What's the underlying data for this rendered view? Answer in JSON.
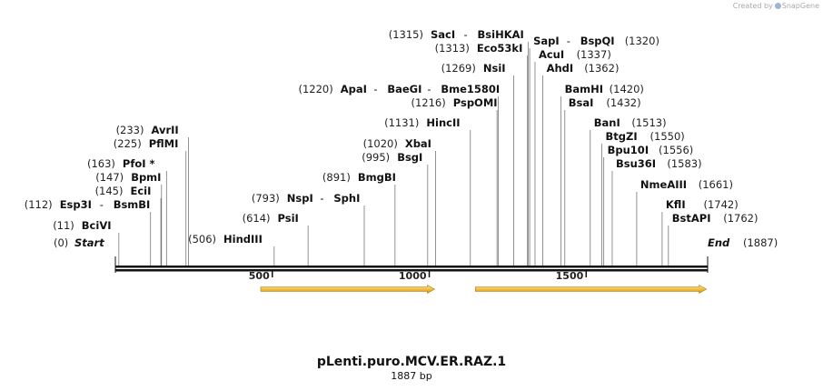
{
  "credit": {
    "text": "Created by",
    "brand": "SnapGene"
  },
  "map": {
    "name": "pLenti.puro.MCV.ER.RAZ.1",
    "length_label": "1887 bp",
    "total_bp": 1887,
    "start": {
      "label": "Start",
      "pos": "(0)",
      "bp": 0
    },
    "end": {
      "label": "End",
      "pos": "(1887)",
      "bp": 1887
    },
    "ticks": [
      {
        "bp": 500,
        "label": "500"
      },
      {
        "bp": 1000,
        "label": "1000"
      },
      {
        "bp": 1500,
        "label": "1500"
      }
    ],
    "features": [
      {
        "name": "feature-arrow-1",
        "from_bp": 463,
        "to_bp": 1017,
        "color": "#f5c242"
      },
      {
        "name": "feature-arrow-2",
        "from_bp": 1147,
        "to_bp": 1883,
        "color": "#f5c242"
      }
    ],
    "sites": [
      {
        "pos": "(11)",
        "bp": 11,
        "enzymes": [
          "BciVI"
        ],
        "side": "left"
      },
      {
        "pos": "(112)",
        "bp": 112,
        "enzymes": [
          "Esp3I",
          "BsmBI"
        ],
        "side": "left"
      },
      {
        "pos": "(145)",
        "bp": 145,
        "enzymes": [
          "EciI"
        ],
        "side": "left"
      },
      {
        "pos": "(147)",
        "bp": 147,
        "enzymes": [
          "BpmI"
        ],
        "side": "left"
      },
      {
        "pos": "(163)",
        "bp": 163,
        "enzymes": [
          "PfoI *"
        ],
        "side": "left"
      },
      {
        "pos": "(225)",
        "bp": 225,
        "enzymes": [
          "PflMI"
        ],
        "side": "left"
      },
      {
        "pos": "(233)",
        "bp": 233,
        "enzymes": [
          "AvrII"
        ],
        "side": "left"
      },
      {
        "pos": "(506)",
        "bp": 506,
        "enzymes": [
          "HindIII"
        ],
        "side": "left"
      },
      {
        "pos": "(614)",
        "bp": 614,
        "enzymes": [
          "PsiI"
        ],
        "side": "left"
      },
      {
        "pos": "(793)",
        "bp": 793,
        "enzymes": [
          "NspI",
          "SphI"
        ],
        "side": "left"
      },
      {
        "pos": "(891)",
        "bp": 891,
        "enzymes": [
          "BmgBI"
        ],
        "side": "left"
      },
      {
        "pos": "(995)",
        "bp": 995,
        "enzymes": [
          "BsgI"
        ],
        "side": "left"
      },
      {
        "pos": "(1020)",
        "bp": 1020,
        "enzymes": [
          "XbaI"
        ],
        "side": "left"
      },
      {
        "pos": "(1131)",
        "bp": 1131,
        "enzymes": [
          "HincII"
        ],
        "side": "left"
      },
      {
        "pos": "(1216)",
        "bp": 1216,
        "enzymes": [
          "PspOMI"
        ],
        "side": "left"
      },
      {
        "pos": "(1220)",
        "bp": 1220,
        "enzymes": [
          "ApaI",
          "BaeGI",
          "Bme1580I"
        ],
        "side": "left"
      },
      {
        "pos": "(1269)",
        "bp": 1269,
        "enzymes": [
          "NsiI"
        ],
        "side": "left"
      },
      {
        "pos": "(1313)",
        "bp": 1313,
        "enzymes": [
          "Eco53kI"
        ],
        "side": "left"
      },
      {
        "pos": "(1315)",
        "bp": 1315,
        "enzymes": [
          "SacI",
          "BsiHKAI"
        ],
        "side": "left"
      },
      {
        "pos": "(1320)",
        "bp": 1320,
        "enzymes": [
          "SapI",
          "BspQI"
        ],
        "side": "right"
      },
      {
        "pos": "(1337)",
        "bp": 1337,
        "enzymes": [
          "AcuI"
        ],
        "side": "right"
      },
      {
        "pos": "(1362)",
        "bp": 1362,
        "enzymes": [
          "AhdI"
        ],
        "side": "right"
      },
      {
        "pos": "(1420)",
        "bp": 1420,
        "enzymes": [
          "BamHI"
        ],
        "side": "right"
      },
      {
        "pos": "(1432)",
        "bp": 1432,
        "enzymes": [
          "BsaI"
        ],
        "side": "right"
      },
      {
        "pos": "(1513)",
        "bp": 1513,
        "enzymes": [
          "BanI"
        ],
        "side": "right"
      },
      {
        "pos": "(1550)",
        "bp": 1550,
        "enzymes": [
          "BtgZI"
        ],
        "side": "right"
      },
      {
        "pos": "(1556)",
        "bp": 1556,
        "enzymes": [
          "Bpu10I"
        ],
        "side": "right"
      },
      {
        "pos": "(1583)",
        "bp": 1583,
        "enzymes": [
          "Bsu36I"
        ],
        "side": "right"
      },
      {
        "pos": "(1661)",
        "bp": 1661,
        "enzymes": [
          "NmeAIII"
        ],
        "side": "right"
      },
      {
        "pos": "(1742)",
        "bp": 1742,
        "enzymes": [
          "KflI"
        ],
        "side": "right"
      },
      {
        "pos": "(1762)",
        "bp": 1762,
        "enzymes": [
          "BstAPI"
        ],
        "side": "right"
      }
    ]
  }
}
